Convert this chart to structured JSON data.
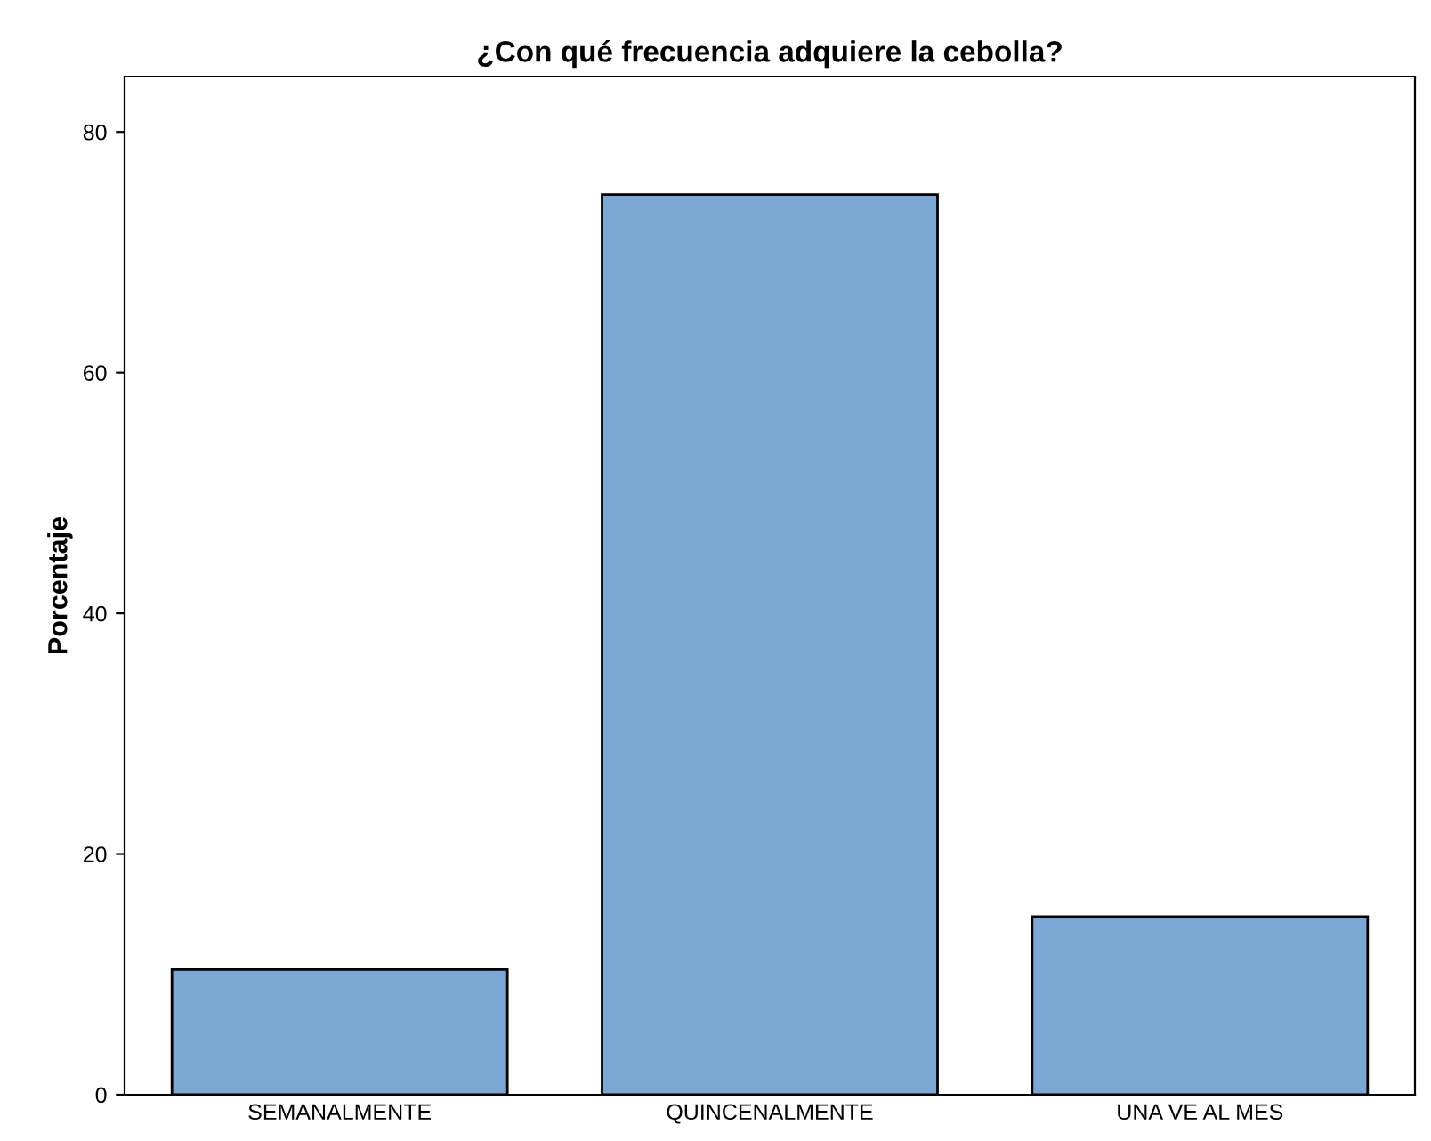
{
  "chart_data": {
    "type": "bar",
    "title": "¿Con qué frecuencia adquiere la cebolla?",
    "ylabel": "Porcentaje",
    "categories": [
      "SEMANALMENTE",
      "QUINCENALMENTE",
      "UNA VE AL MES"
    ],
    "values": [
      10.4,
      74.8,
      14.8
    ],
    "color": "#7ba7d4",
    "ylim": [
      0,
      84.6
    ],
    "yticks": [
      0,
      20,
      40,
      60,
      80
    ],
    "grid": false,
    "legend": false
  }
}
